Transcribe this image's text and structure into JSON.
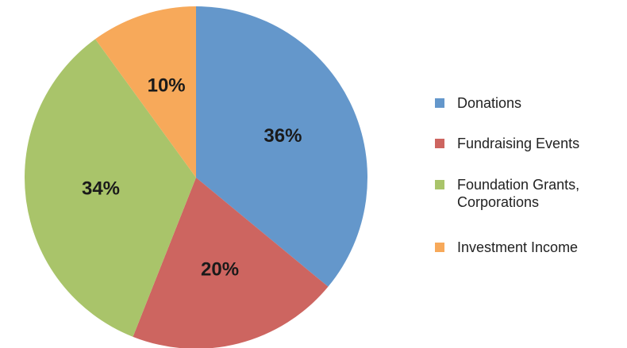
{
  "chart_data": {
    "type": "pie",
    "categories": [
      "Donations",
      "Fundraising Events",
      "Foundation Grants, Corporations",
      "Investment Income"
    ],
    "values": [
      36,
      20,
      34,
      10
    ],
    "value_labels": [
      "36%",
      "20%",
      "34%",
      "10%"
    ],
    "colors": [
      "#6497cb",
      "#cd6560",
      "#a9c46a",
      "#f7a95a"
    ],
    "legend": "right"
  }
}
